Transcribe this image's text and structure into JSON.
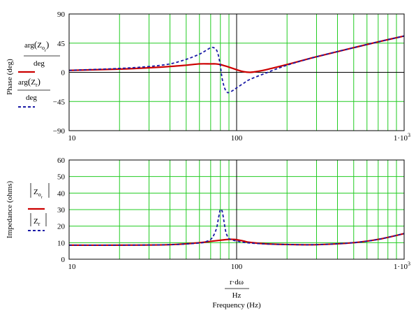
{
  "chart_data": [
    {
      "type": "line",
      "x_scale": "log",
      "xlim": [
        10,
        1000
      ],
      "ylim": [
        -90,
        90
      ],
      "grid": true,
      "ylabel": "Phase (deg)",
      "x_ticks": [
        {
          "value": 10,
          "label": "10"
        },
        {
          "value": 100,
          "label": "100"
        },
        {
          "value": 1000,
          "label": "1·10",
          "sup": "3"
        }
      ],
      "y_ticks": [
        {
          "value": 90,
          "label": "90"
        },
        {
          "value": 45,
          "label": "45"
        },
        {
          "value": 0,
          "label": "0"
        },
        {
          "value": -45,
          "label": "−45"
        },
        {
          "value": -90,
          "label": "−90"
        }
      ],
      "series": [
        {
          "name": "arg(Z_o_r)/deg",
          "color": "#cc0000",
          "dash": "solid",
          "x": [
            10,
            20,
            30,
            40,
            50,
            60,
            70,
            75,
            80,
            85,
            90,
            95,
            100,
            110,
            120,
            130,
            150,
            200,
            300,
            500,
            700,
            1000
          ],
          "y": [
            3,
            5,
            7,
            9,
            11,
            13,
            13,
            13,
            12,
            10,
            8,
            6,
            4,
            1,
            0,
            1,
            4,
            12,
            24,
            38,
            47,
            56
          ]
        },
        {
          "name": "arg(Z_r)/deg",
          "color": "#1a1aa6",
          "dash": "dashed",
          "x": [
            10,
            20,
            30,
            40,
            50,
            60,
            65,
            70,
            73,
            76,
            78,
            80,
            82,
            85,
            88,
            90,
            95,
            100,
            110,
            120,
            150,
            200,
            300,
            500,
            700,
            1000
          ],
          "y": [
            3,
            6,
            9,
            13,
            20,
            28,
            33,
            38,
            38,
            34,
            25,
            10,
            -10,
            -25,
            -31,
            -31,
            -28,
            -24,
            -17,
            -11,
            -1,
            11,
            24,
            38,
            47,
            56
          ]
        }
      ],
      "legend": {
        "label1_top": "arg",
        "label1_sym": "Z",
        "label1_sub": "o",
        "label1_subsub": "r",
        "label1_bottom": "deg",
        "label2_top": "arg",
        "label2_sym": "Z",
        "label2_sub": "r",
        "label2_bottom": "deg"
      }
    },
    {
      "type": "line",
      "x_scale": "log",
      "xlim": [
        10,
        1000
      ],
      "ylim": [
        0,
        60
      ],
      "grid": true,
      "ylabel": "Impedance (ohms)",
      "xlabel": "Frequency (Hz)",
      "xexpr_top": "r·dω",
      "xexpr_bottom": "Hz",
      "x_ticks": [
        {
          "value": 10,
          "label": "10"
        },
        {
          "value": 100,
          "label": "100"
        },
        {
          "value": 1000,
          "label": "1·10",
          "sup": "3"
        }
      ],
      "y_ticks": [
        {
          "value": 60,
          "label": "60"
        },
        {
          "value": 50,
          "label": "50"
        },
        {
          "value": 40,
          "label": "40"
        },
        {
          "value": 30,
          "label": "30"
        },
        {
          "value": 20,
          "label": "20"
        },
        {
          "value": 10,
          "label": "10"
        },
        {
          "value": 0,
          "label": "0"
        }
      ],
      "series": [
        {
          "name": "|Z_o_r|",
          "color": "#cc0000",
          "dash": "solid",
          "x": [
            10,
            20,
            40,
            60,
            70,
            80,
            90,
            95,
            100,
            110,
            120,
            150,
            200,
            300,
            500,
            700,
            1000
          ],
          "y": [
            8.5,
            8.5,
            8.8,
            10,
            10.8,
            11.5,
            12,
            12,
            11.8,
            11,
            10.2,
            9.3,
            8.9,
            8.8,
            10,
            12,
            15.5
          ]
        },
        {
          "name": "|Z_r|",
          "color": "#1a1aa6",
          "dash": "dashed",
          "x": [
            10,
            20,
            40,
            60,
            65,
            70,
            73,
            76,
            78,
            80,
            82,
            84,
            86,
            88,
            90,
            95,
            100,
            110,
            120,
            150,
            200,
            300,
            500,
            700,
            1000
          ],
          "y": [
            8.5,
            8.5,
            8.8,
            9.8,
            10.5,
            12,
            14.5,
            19,
            25,
            30,
            29,
            23,
            17,
            14,
            12.5,
            11.5,
            11,
            10.2,
            9.8,
            9.2,
            8.9,
            8.8,
            10,
            12,
            15.5
          ]
        }
      ],
      "legend": {
        "label1_sym": "Z",
        "label1_sub": "o",
        "label1_subsub": "r",
        "label2_sym": "Z",
        "label2_sub": "r"
      }
    }
  ]
}
